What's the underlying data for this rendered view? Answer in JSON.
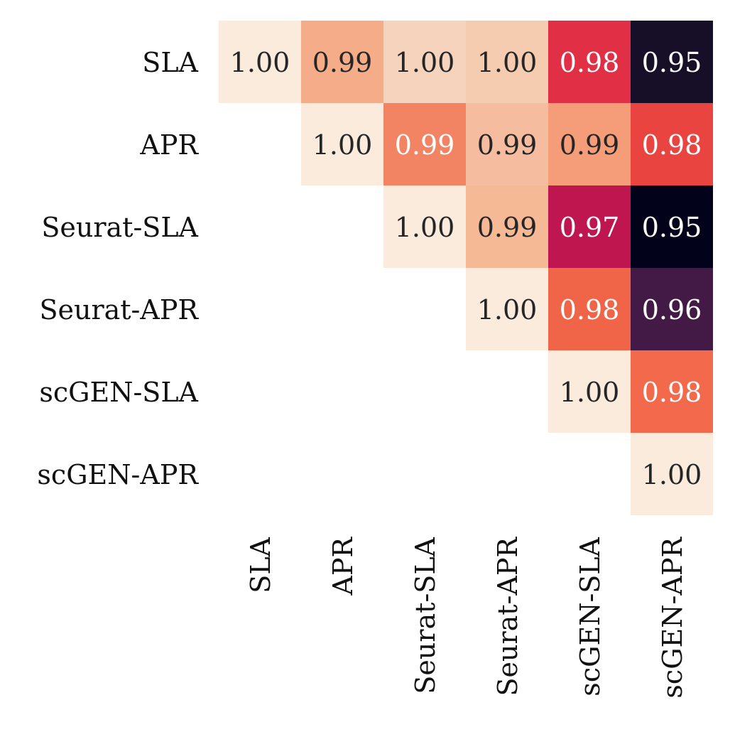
{
  "chart_data": {
    "type": "heatmap",
    "title": "",
    "xlabel": "",
    "ylabel": "",
    "row_labels": [
      "SLA",
      "APR",
      "Seurat-SLA",
      "Seurat-APR",
      "scGEN-SLA",
      "scGEN-APR"
    ],
    "col_labels": [
      "SLA",
      "APR",
      "Seurat-SLA",
      "Seurat-APR",
      "scGEN-SLA",
      "scGEN-APR"
    ],
    "matrix": [
      [
        1.0,
        0.99,
        1.0,
        1.0,
        0.98,
        0.95
      ],
      [
        null,
        1.0,
        0.99,
        0.99,
        0.99,
        0.98
      ],
      [
        null,
        null,
        1.0,
        0.99,
        0.97,
        0.95
      ],
      [
        null,
        null,
        null,
        1.0,
        0.98,
        0.96
      ],
      [
        null,
        null,
        null,
        null,
        1.0,
        0.98
      ],
      [
        null,
        null,
        null,
        null,
        null,
        1.0
      ]
    ],
    "cell_labels": [
      [
        "1.00",
        "0.99",
        "1.00",
        "1.00",
        "0.98",
        "0.95"
      ],
      [
        null,
        "1.00",
        "0.99",
        "0.99",
        "0.99",
        "0.98"
      ],
      [
        null,
        null,
        "1.00",
        "0.99",
        "0.97",
        "0.95"
      ],
      [
        null,
        null,
        null,
        "1.00",
        "0.98",
        "0.96"
      ],
      [
        null,
        null,
        null,
        null,
        "1.00",
        "0.98"
      ],
      [
        null,
        null,
        null,
        null,
        null,
        "1.00"
      ]
    ],
    "cell_colors": [
      [
        "#FAEBDD",
        "#F5AC88",
        "#F6D3BD",
        "#F6CCB1",
        "#E12F45",
        "#170F28"
      ],
      [
        null,
        "#FAEBDD",
        "#F38463",
        "#F6BC9F",
        "#F59D78",
        "#EA4440"
      ],
      [
        null,
        null,
        "#FAEBDD",
        "#F6B996",
        "#C0164F",
        "#02031A"
      ],
      [
        null,
        null,
        null,
        "#FAEBDD",
        "#F06548",
        "#431A45"
      ],
      [
        null,
        null,
        null,
        null,
        "#FAEBDD",
        "#F3694B"
      ],
      [
        null,
        null,
        null,
        null,
        null,
        "#FAEBDD"
      ]
    ],
    "text_colors": [
      [
        "#262626",
        "#262626",
        "#262626",
        "#262626",
        "#FFFFFF",
        "#FFFFFF"
      ],
      [
        null,
        "#262626",
        "#FFFFFF",
        "#262626",
        "#262626",
        "#FFFFFF"
      ],
      [
        null,
        null,
        "#262626",
        "#262626",
        "#FFFFFF",
        "#FFFFFF"
      ],
      [
        null,
        null,
        null,
        "#262626",
        "#FFFFFF",
        "#FFFFFF"
      ],
      [
        null,
        null,
        null,
        null,
        "#262626",
        "#FFFFFF"
      ],
      [
        null,
        null,
        null,
        null,
        null,
        "#262626"
      ]
    ],
    "grid": false,
    "legend": "none",
    "colorbar": false
  }
}
